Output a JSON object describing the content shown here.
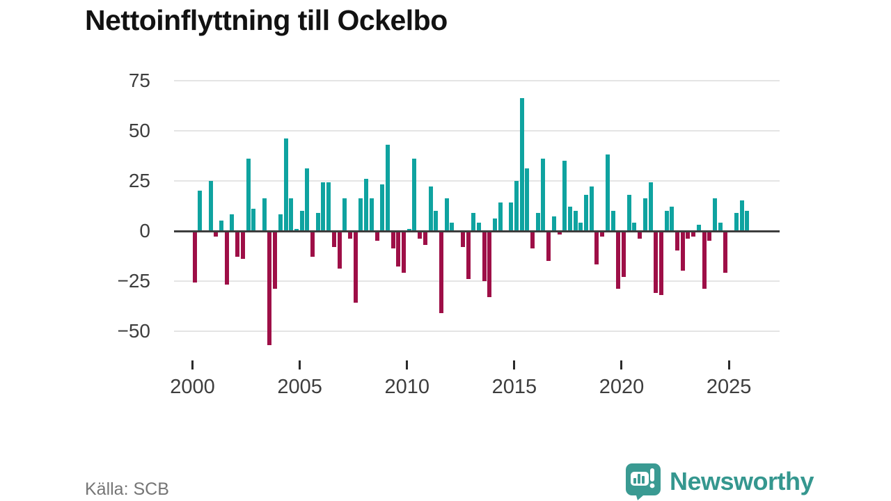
{
  "header": {
    "title": "Nettoinflyttning till Ockelbo"
  },
  "footer": {
    "source_label": "Källa: SCB",
    "brand": "Newsworthy"
  },
  "colors": {
    "positive_bar": "#0fa3a0",
    "negative_bar": "#9e0f47",
    "zero_line": "#3d3d3d",
    "gridline": "#e4e4e4",
    "axis_text": "#3d3d3d",
    "title_text": "#121212",
    "source_text": "#757575",
    "brand_teal": "#35978f"
  },
  "chart_data": {
    "type": "bar",
    "title": "Nettoinflyttning till Ockelbo",
    "xlabel": "",
    "ylabel": "",
    "x_start": "2000 Q1",
    "x_frequency": "quarterly",
    "values": [
      -26,
      20,
      -1,
      25,
      -3,
      5,
      -27,
      8,
      -13,
      -14,
      36,
      11,
      -1,
      16,
      -57,
      -29,
      8,
      46,
      16,
      1,
      10,
      31,
      -13,
      9,
      24,
      24,
      -8,
      -19,
      16,
      -4,
      -36,
      16,
      26,
      16,
      -5,
      23,
      43,
      -9,
      -18,
      -21,
      1,
      36,
      -4,
      -7,
      22,
      10,
      -41,
      16,
      4,
      0,
      -8,
      -24,
      9,
      4,
      -25,
      -33,
      6,
      14,
      0,
      14,
      25,
      66,
      31,
      -9,
      9,
      36,
      -15,
      7,
      -2,
      35,
      12,
      10,
      4,
      18,
      22,
      -17,
      -3,
      38,
      10,
      -29,
      -23,
      18,
      4,
      -4,
      16,
      24,
      -31,
      -32,
      10,
      12,
      -10,
      -20,
      -4,
      -3,
      3,
      -29,
      -5,
      16,
      4,
      -21,
      0,
      9,
      15,
      10
    ],
    "x_tick_years": [
      "2000",
      "2005",
      "2010",
      "2015",
      "2020",
      "2025"
    ],
    "y_ticks": [
      75,
      50,
      25,
      0,
      -25,
      -50
    ],
    "y_tick_labels": [
      "75",
      "50",
      "25",
      "0",
      "−25",
      "−50"
    ],
    "ylim": [
      -60,
      78
    ],
    "grid": "horizontal-only",
    "legend": "none",
    "positive_color": "#0fa3a0",
    "negative_color": "#9e0f47"
  }
}
